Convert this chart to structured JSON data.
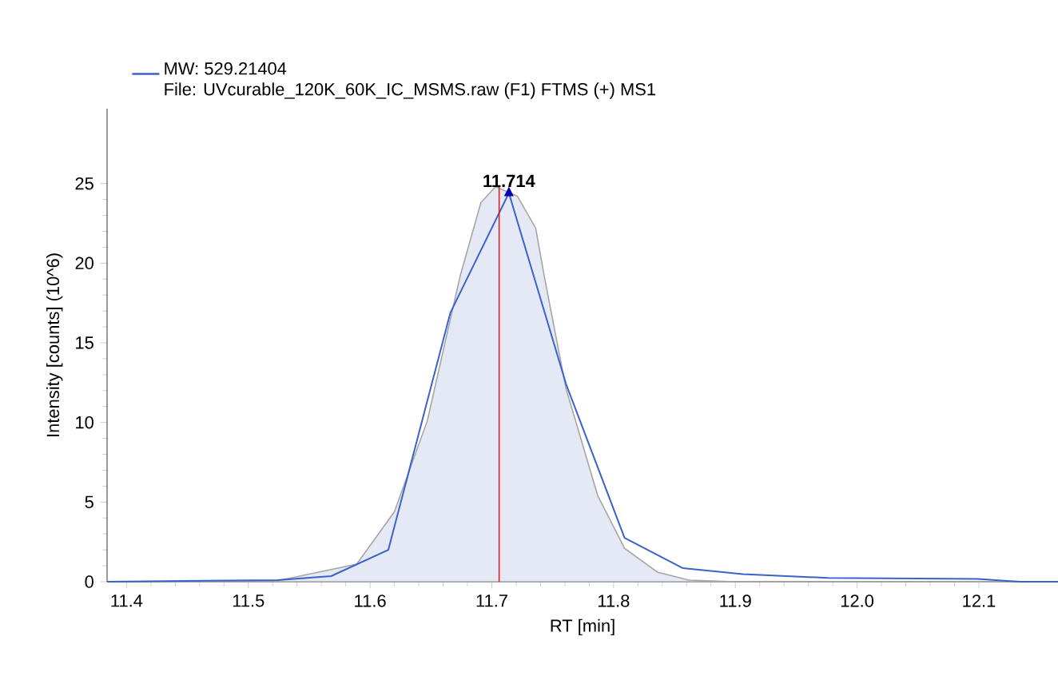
{
  "chart_data": {
    "type": "line",
    "xlabel": "RT [min]",
    "ylabel": "Intensity [counts] (10^6)",
    "xlim": [
      11.384,
      12.165
    ],
    "ylim": [
      0,
      29.7
    ],
    "xticks": [
      11.4,
      11.5,
      11.6,
      11.7,
      11.8,
      11.9,
      {
        "value": 12,
        "label": "12.0"
      },
      12.1
    ],
    "yticks": [
      0,
      5,
      10,
      15,
      20,
      25
    ],
    "legend": "top left",
    "marker": "none",
    "line_style": "solid",
    "series": [
      {
        "type": "area",
        "color": "#e4e9f5",
        "x": [
          11.384,
          11.52,
          11.589,
          11.62,
          11.647,
          11.674,
          11.691,
          11.703,
          11.721,
          11.736,
          11.743,
          11.761,
          11.787,
          11.809,
          11.836,
          11.862,
          11.9,
          12.165
        ],
        "values": [
          0,
          0,
          1.1,
          4.4,
          10.1,
          19.2,
          23.8,
          24.8,
          24.2,
          22.2,
          19.2,
          12.1,
          5.4,
          2.1,
          0.6,
          0.1,
          0,
          0
        ]
      },
      {
        "name": "MW: 529.21404",
        "color": "#3a62c8",
        "x": [
          11.384,
          11.524,
          11.568,
          11.615,
          11.666,
          11.714,
          11.761,
          11.809,
          11.857,
          11.906,
          11.976,
          12.099,
          12.134,
          12.165
        ],
        "values": [
          0,
          0.1,
          0.35,
          2.0,
          16.9,
          24.4,
          12.4,
          2.75,
          0.85,
          0.48,
          0.24,
          0.18,
          0,
          0
        ]
      }
    ],
    "ref_lines": [
      {
        "axis": "x",
        "value": 11.706,
        "color": "#e02020"
      }
    ],
    "annotations": [
      {
        "text": "11.714",
        "x": 11.714,
        "y": 24.4
      },
      "File: UVcurable_120K_60K_IC_MSMS.raw (F1) FTMS (+) MS1"
    ]
  }
}
